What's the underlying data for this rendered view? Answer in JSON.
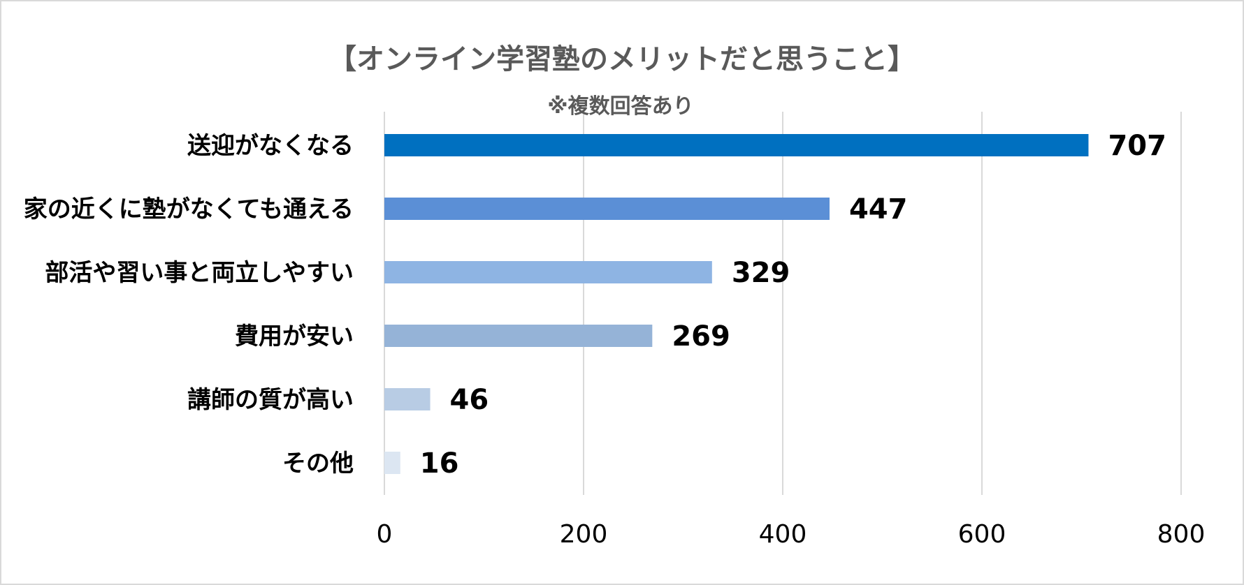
{
  "chart_data": {
    "type": "bar",
    "orientation": "horizontal",
    "title": "【オンライン学習塾のメリットだと思うこと】",
    "subtitle": "※複数回答あり",
    "categories": [
      "送迎がなくなる",
      "家の近くに塾がなくても通える",
      "部活や習い事と両立しやすい",
      "費用が安い",
      "講師の質が高い",
      "その他"
    ],
    "values": [
      707,
      447,
      329,
      269,
      46,
      16
    ],
    "value_labels": [
      "707",
      "447",
      "329",
      "269",
      "46",
      "16"
    ],
    "bar_colors": [
      "#0070C0",
      "#5B8FD6",
      "#8EB4E3",
      "#95B3D7",
      "#B8CCE4",
      "#DCE6F2"
    ],
    "xlim": [
      0,
      800
    ],
    "x_ticks": [
      0,
      200,
      400,
      600,
      800
    ],
    "x_tick_labels": [
      "0",
      "200",
      "400",
      "600",
      "800"
    ],
    "grid": true,
    "legend": "none"
  }
}
